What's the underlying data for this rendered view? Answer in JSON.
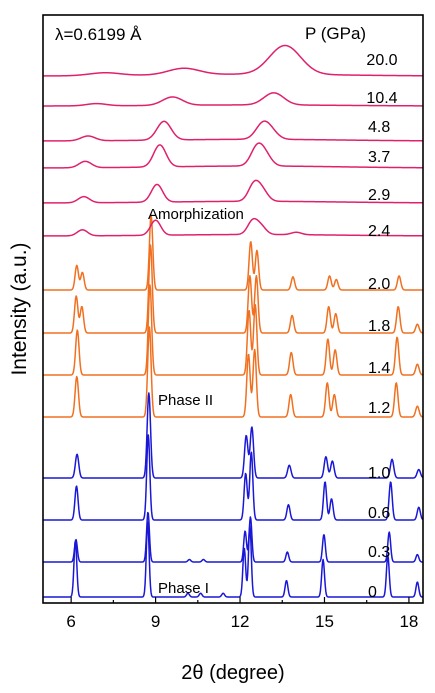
{
  "chart_data": {
    "type": "line",
    "xlabel": "2θ (degree)",
    "ylabel": "Intensity (a.u.)",
    "xlim": [
      5.0,
      18.5
    ],
    "xticks": [
      "6",
      "9",
      "12",
      "15",
      "18"
    ],
    "xtick_values": [
      6,
      9,
      12,
      15,
      18
    ],
    "wavelength_label": "λ=0.6199 Å",
    "pressure_header": "P (GPa)",
    "annotations": [
      {
        "text": "Amorphization",
        "x": 10.9
      },
      {
        "text": "Phase II",
        "x": 10.2
      },
      {
        "text": "Phase I",
        "x": 10.6
      }
    ],
    "phases": {
      "amorphous": {
        "color": "#e0206c"
      },
      "phase2": {
        "color": "#f07020"
      },
      "phase1": {
        "color": "#1a18d6"
      }
    },
    "series": [
      {
        "name": "0",
        "phase": "phase1",
        "peaks": [
          [
            6.15,
            0.75
          ],
          [
            8.72,
            1.0
          ],
          [
            12.15,
            0.65
          ],
          [
            12.35,
            0.95
          ],
          [
            13.65,
            0.22
          ],
          [
            14.95,
            0.5
          ],
          [
            17.25,
            0.55
          ],
          [
            18.3,
            0.2
          ],
          [
            10.15,
            0.05
          ],
          [
            10.6,
            0.05
          ],
          [
            11.4,
            0.05
          ]
        ],
        "width": 0.05
      },
      {
        "name": "0.3",
        "phase": "phase1",
        "peaks": [
          [
            6.17,
            0.45
          ],
          [
            8.73,
            1.0
          ],
          [
            12.18,
            0.62
          ],
          [
            12.37,
            0.9
          ],
          [
            13.68,
            0.2
          ],
          [
            14.98,
            0.55
          ],
          [
            17.3,
            0.6
          ],
          [
            18.3,
            0.15
          ],
          [
            10.2,
            0.05
          ],
          [
            10.7,
            0.05
          ]
        ],
        "width": 0.05
      },
      {
        "name": "0.6",
        "phase": "phase1",
        "peaks": [
          [
            6.19,
            0.4
          ],
          [
            8.74,
            1.0
          ],
          [
            12.2,
            0.55
          ],
          [
            12.4,
            0.8
          ],
          [
            13.72,
            0.18
          ],
          [
            15.02,
            0.45
          ],
          [
            15.25,
            0.25
          ],
          [
            17.35,
            0.45
          ],
          [
            18.35,
            0.15
          ]
        ],
        "width": 0.055
      },
      {
        "name": "1.0",
        "phase": "phase1",
        "peaks": [
          [
            6.21,
            0.28
          ],
          [
            8.76,
            1.0
          ],
          [
            12.22,
            0.5
          ],
          [
            12.42,
            0.6
          ],
          [
            13.75,
            0.15
          ],
          [
            15.05,
            0.25
          ],
          [
            15.28,
            0.2
          ],
          [
            17.4,
            0.22
          ],
          [
            18.35,
            0.1
          ]
        ],
        "width": 0.06
      },
      {
        "name": "1.2",
        "phase": "phase2",
        "peaks": [
          [
            6.2,
            0.45
          ],
          [
            8.78,
            1.0
          ],
          [
            12.3,
            0.7
          ],
          [
            12.52,
            0.75
          ],
          [
            13.8,
            0.25
          ],
          [
            15.1,
            0.38
          ],
          [
            15.35,
            0.25
          ],
          [
            17.55,
            0.38
          ],
          [
            18.3,
            0.12
          ]
        ],
        "width": 0.06
      },
      {
        "name": "1.4",
        "phase": "phase2",
        "peaks": [
          [
            6.22,
            0.5
          ],
          [
            8.8,
            1.0
          ],
          [
            12.32,
            0.72
          ],
          [
            12.54,
            0.78
          ],
          [
            13.82,
            0.25
          ],
          [
            15.12,
            0.4
          ],
          [
            15.38,
            0.28
          ],
          [
            17.58,
            0.42
          ],
          [
            18.3,
            0.12
          ]
        ],
        "width": 0.06
      },
      {
        "name": "1.8",
        "phase": "phase2",
        "peaks": [
          [
            6.18,
            0.42
          ],
          [
            6.38,
            0.3
          ],
          [
            8.82,
            1.0
          ],
          [
            12.35,
            0.65
          ],
          [
            12.58,
            0.65
          ],
          [
            13.85,
            0.2
          ],
          [
            15.15,
            0.3
          ],
          [
            15.4,
            0.22
          ],
          [
            17.62,
            0.3
          ],
          [
            18.3,
            0.1
          ]
        ],
        "width": 0.06
      },
      {
        "name": "2.0",
        "phase": "phase2",
        "peaks": [
          [
            6.2,
            0.28
          ],
          [
            6.4,
            0.2
          ],
          [
            8.84,
            0.85
          ],
          [
            12.38,
            0.55
          ],
          [
            12.6,
            0.45
          ],
          [
            13.88,
            0.15
          ],
          [
            15.18,
            0.16
          ],
          [
            15.42,
            0.12
          ],
          [
            17.65,
            0.16
          ]
        ],
        "width": 0.06
      },
      {
        "name": "2.4",
        "phase": "amorphous",
        "peaks": [
          [
            6.4,
            0.2
          ],
          [
            9.0,
            0.5
          ],
          [
            12.45,
            0.45
          ],
          [
            12.75,
            0.25
          ],
          [
            14.0,
            0.08
          ]
        ],
        "width": 0.18
      },
      {
        "name": "2.9",
        "phase": "amorphous",
        "peaks": [
          [
            6.45,
            0.18
          ],
          [
            9.05,
            0.52
          ],
          [
            12.5,
            0.5
          ],
          [
            12.8,
            0.28
          ]
        ],
        "width": 0.2
      },
      {
        "name": "3.7",
        "phase": "amorphous",
        "peaks": [
          [
            6.5,
            0.16
          ],
          [
            9.15,
            0.55
          ],
          [
            12.6,
            0.45
          ],
          [
            12.9,
            0.25
          ]
        ],
        "width": 0.22
      },
      {
        "name": "4.8",
        "phase": "amorphous",
        "peaks": [
          [
            6.6,
            0.14
          ],
          [
            9.3,
            0.55
          ],
          [
            12.8,
            0.42
          ],
          [
            13.1,
            0.2
          ]
        ],
        "width": 0.25
      },
      {
        "name": "10.4",
        "phase": "amorphous",
        "peaks": [
          [
            6.9,
            0.1
          ],
          [
            9.6,
            0.38
          ],
          [
            13.2,
            0.55
          ]
        ],
        "width": 0.35
      },
      {
        "name": "20.0",
        "phase": "amorphous",
        "peaks": [
          [
            7.2,
            0.08
          ],
          [
            10.0,
            0.18
          ],
          [
            13.6,
            0.8
          ]
        ],
        "width": 0.55
      }
    ]
  }
}
